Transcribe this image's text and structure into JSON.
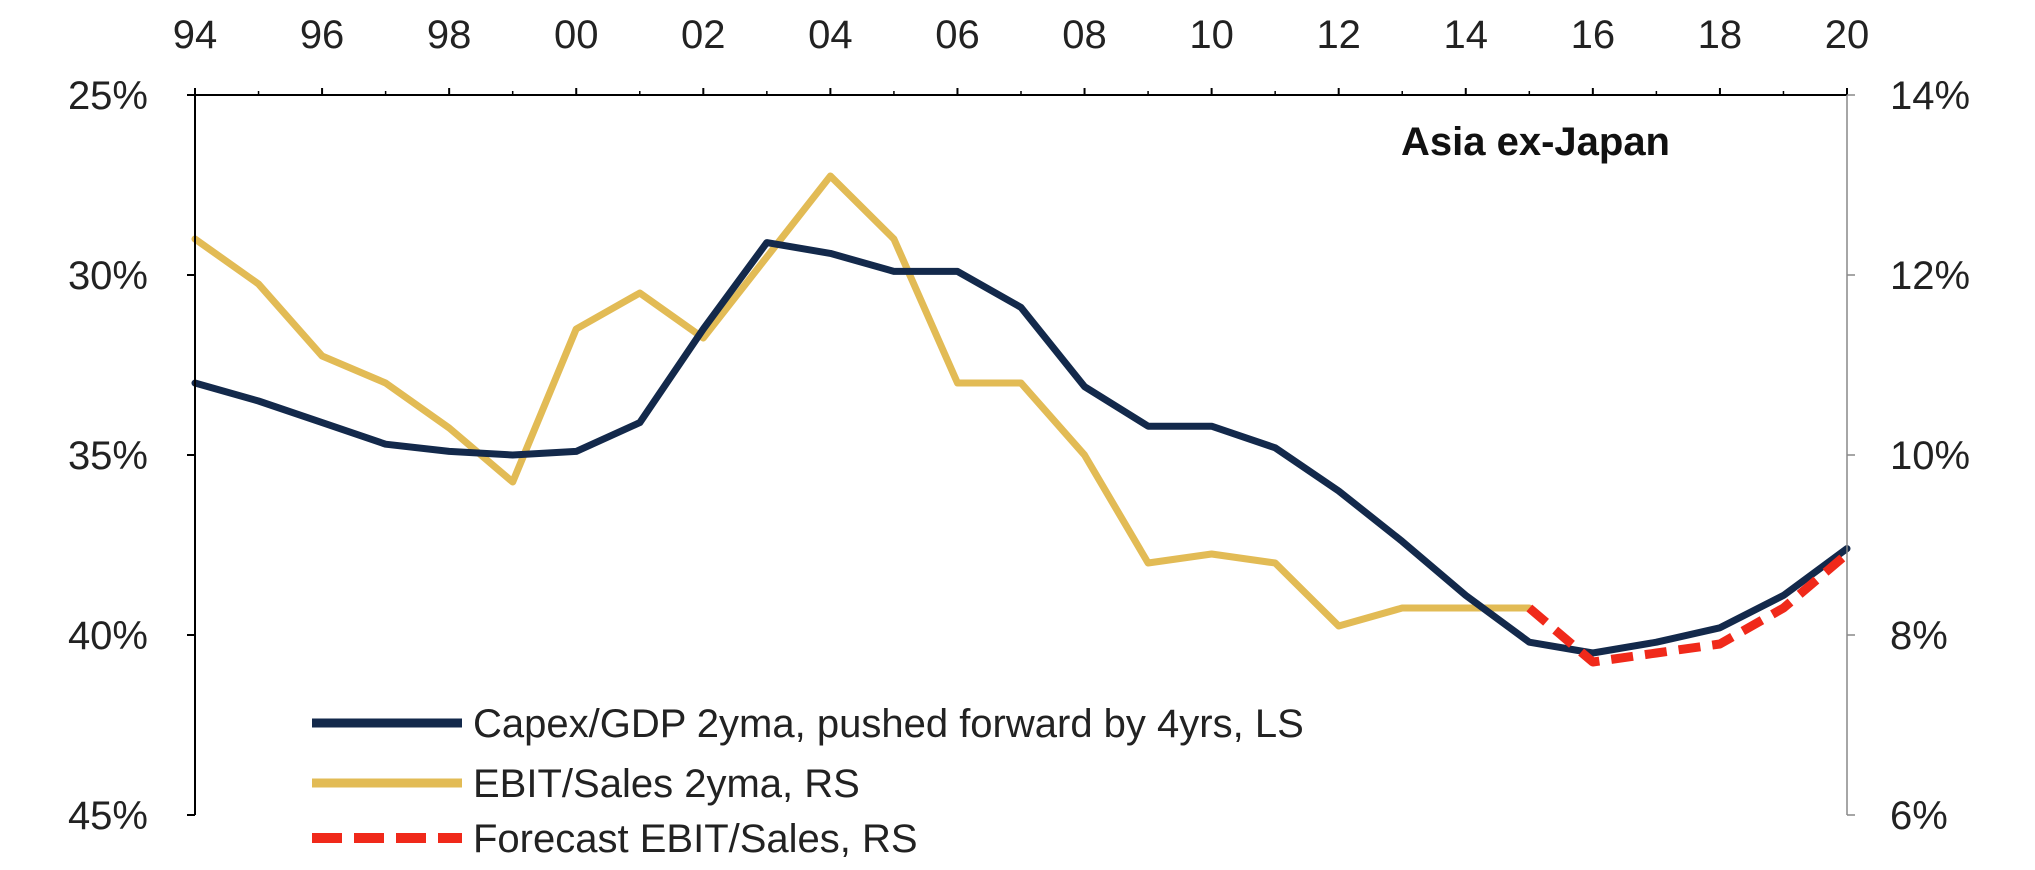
{
  "chart_data": {
    "type": "line",
    "title": "Asia ex-Japan",
    "x_tick_labels": [
      "94",
      "96",
      "98",
      "00",
      "02",
      "04",
      "06",
      "08",
      "10",
      "12",
      "14",
      "16",
      "18",
      "20"
    ],
    "x_range": [
      1994,
      2020
    ],
    "left_axis": {
      "inverted": true,
      "range": [
        25,
        45
      ],
      "tick_values": [
        25,
        30,
        35,
        40,
        45
      ],
      "tick_labels": [
        "25%",
        "30%",
        "35%",
        "40%",
        "45%"
      ]
    },
    "right_axis": {
      "range": [
        6,
        14
      ],
      "tick_values": [
        14,
        12,
        10,
        8,
        6
      ],
      "tick_labels": [
        "14%",
        "12%",
        "10%",
        "8%",
        "6%"
      ]
    },
    "grid": false,
    "legend_position": "bottom-left",
    "series": [
      {
        "name": "Capex/GDP 2yma, pushed forward by 4yrs, LS",
        "axis": "left",
        "color": "#13294b",
        "style": "solid",
        "x": [
          1994,
          1995,
          1996,
          1997,
          1998,
          1999,
          2000,
          2001,
          2002,
          2003,
          2004,
          2005,
          2006,
          2007,
          2008,
          2009,
          2010,
          2011,
          2012,
          2013,
          2014,
          2015,
          2016,
          2017,
          2018,
          2019,
          2020
        ],
        "values": [
          33.0,
          33.5,
          34.1,
          34.7,
          34.9,
          35.0,
          34.9,
          34.1,
          31.5,
          29.1,
          29.4,
          29.9,
          29.9,
          30.9,
          33.1,
          34.2,
          34.2,
          34.8,
          36.0,
          37.4,
          38.9,
          40.2,
          40.5,
          40.2,
          39.8,
          38.9,
          37.6
        ]
      },
      {
        "name": "EBIT/Sales 2yma, RS",
        "axis": "right",
        "color": "#e2bb55",
        "style": "solid",
        "x": [
          1994,
          1995,
          1996,
          1997,
          1998,
          1999,
          2000,
          2001,
          2002,
          2003,
          2004,
          2005,
          2006,
          2007,
          2008,
          2009,
          2010,
          2011,
          2012,
          2013,
          2014,
          2015
        ],
        "values": [
          12.4,
          11.9,
          11.1,
          10.8,
          10.3,
          9.7,
          11.4,
          11.8,
          11.3,
          12.2,
          13.1,
          12.4,
          10.8,
          10.8,
          10.0,
          8.8,
          8.9,
          8.8,
          8.1,
          8.3,
          8.3,
          8.3
        ]
      },
      {
        "name": "Forecast EBIT/Sales, RS",
        "axis": "right",
        "color": "#f0291a",
        "style": "dashed",
        "x": [
          2015,
          2016,
          2017,
          2018,
          2019,
          2020
        ],
        "values": [
          8.3,
          7.7,
          7.8,
          7.9,
          8.3,
          8.9
        ]
      }
    ]
  }
}
